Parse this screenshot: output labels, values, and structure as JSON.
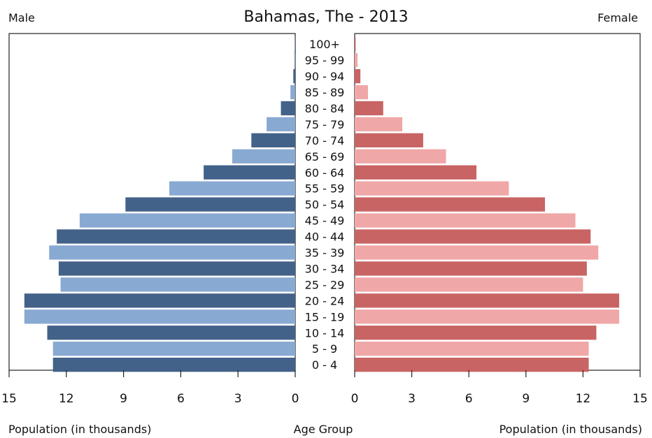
{
  "chart_data": {
    "type": "bar",
    "title": "Bahamas, The - 2013",
    "left_label": "Male",
    "right_label": "Female",
    "xlabel_left": "Population (in thousands)",
    "xlabel_center": "Age Group",
    "xlabel_right": "Population (in thousands)",
    "xlim": [
      0,
      15
    ],
    "x_ticks_left": [
      "15",
      "12",
      "9",
      "6",
      "3",
      "0"
    ],
    "x_ticks_right": [
      "0",
      "3",
      "6",
      "9",
      "12",
      "15"
    ],
    "categories": [
      "100+",
      "95 - 99",
      "90 - 94",
      "85 - 89",
      "80 - 84",
      "75 - 79",
      "70 - 74",
      "65 - 69",
      "60 - 64",
      "55 - 59",
      "50 - 54",
      "45 - 49",
      "40 - 44",
      "35 - 39",
      "30 - 34",
      "25 - 29",
      "20 - 24",
      "15 - 19",
      "10 - 14",
      "5 - 9",
      "0 - 4"
    ],
    "series": [
      {
        "name": "Male",
        "values": [
          0.02,
          0.05,
          0.1,
          0.25,
          0.75,
          1.5,
          2.3,
          3.3,
          4.8,
          6.6,
          8.9,
          11.3,
          12.5,
          12.9,
          12.4,
          12.3,
          14.2,
          14.2,
          13.0,
          12.7,
          12.7
        ]
      },
      {
        "name": "Female",
        "values": [
          0.05,
          0.15,
          0.3,
          0.7,
          1.5,
          2.5,
          3.6,
          4.8,
          6.4,
          8.1,
          10.0,
          11.6,
          12.4,
          12.8,
          12.2,
          12.0,
          13.9,
          13.9,
          12.7,
          12.3,
          12.3
        ]
      }
    ],
    "colors": {
      "male_dark": "#43628a",
      "male_light": "#88a9d2",
      "female_dark": "#c96464",
      "female_light": "#f0a7a7"
    },
    "grid": false
  }
}
